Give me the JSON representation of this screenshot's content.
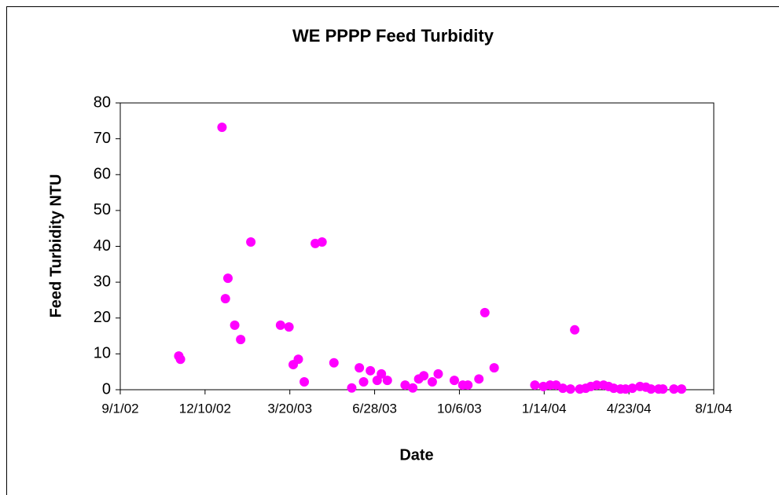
{
  "chart_data": {
    "type": "scatter",
    "title": "WE PPPP Feed Turbidity",
    "x_label": "Date",
    "y_label": "Feed Turbidity NTU",
    "series": [
      {
        "color": "#ff00ff",
        "x": [
          "2002-11-09",
          "2002-11-11",
          "2002-12-30",
          "2003-01-03",
          "2003-01-06",
          "2003-01-14",
          "2003-01-21",
          "2003-02-02",
          "2003-03-09",
          "2003-03-19",
          "2003-03-24",
          "2003-03-30",
          "2003-04-06",
          "2003-04-19",
          "2003-04-27",
          "2003-05-11",
          "2003-06-01",
          "2003-06-10",
          "2003-06-15",
          "2003-06-23",
          "2003-07-01",
          "2003-07-06",
          "2003-07-13",
          "2003-08-03",
          "2003-08-12",
          "2003-08-19",
          "2003-08-25",
          "2003-09-04",
          "2003-09-11",
          "2003-09-30",
          "2003-10-10",
          "2003-10-16",
          "2003-10-29",
          "2003-11-05",
          "2003-11-16",
          "2004-01-03",
          "2004-01-13",
          "2004-01-21",
          "2004-01-28",
          "2004-02-05",
          "2004-02-14",
          "2004-02-19",
          "2004-02-25",
          "2004-03-03",
          "2004-03-09",
          "2004-03-16",
          "2004-03-24",
          "2004-03-30",
          "2004-04-05",
          "2004-04-13",
          "2004-04-19",
          "2004-04-27",
          "2004-05-06",
          "2004-05-13",
          "2004-05-19",
          "2004-05-28",
          "2004-06-02",
          "2004-06-15",
          "2004-06-24"
        ],
        "values": [
          9.4,
          8.5,
          73.2,
          25.4,
          31.1,
          18,
          14,
          41.2,
          18,
          17.5,
          7,
          8.5,
          2.2,
          40.8,
          41.2,
          7.5,
          0.5,
          6.1,
          2.2,
          5.3,
          2.6,
          4.4,
          2.6,
          1.3,
          0.5,
          3,
          3.9,
          2.2,
          4.4,
          2.6,
          1.3,
          1.3,
          3,
          21.5,
          6.1,
          1.3,
          0.9,
          1.3,
          1.3,
          0.4,
          0.2,
          16.7,
          0.2,
          0.4,
          0.9,
          1.3,
          1.3,
          0.9,
          0.4,
          0.2,
          0.2,
          0.4,
          0.9,
          0.7,
          0.2,
          0.2,
          0.2,
          0.2,
          0.2
        ]
      }
    ],
    "xlim": [
      "2002-09-01",
      "2004-08-01"
    ],
    "xticks": [
      {
        "value": "2002-09-01",
        "label": "9/1/02"
      },
      {
        "value": "2002-12-10",
        "label": "12/10/02"
      },
      {
        "value": "2003-03-20",
        "label": "3/20/03"
      },
      {
        "value": "2003-06-28",
        "label": "6/28/03"
      },
      {
        "value": "2003-10-06",
        "label": "10/6/03"
      },
      {
        "value": "2004-01-14",
        "label": "1/14/04"
      },
      {
        "value": "2004-04-23",
        "label": "4/23/04"
      },
      {
        "value": "2004-08-01",
        "label": "8/1/04"
      }
    ],
    "ylim": [
      0,
      80
    ],
    "yticks": [
      0,
      10,
      20,
      30,
      40,
      50,
      60,
      70,
      80
    ]
  }
}
